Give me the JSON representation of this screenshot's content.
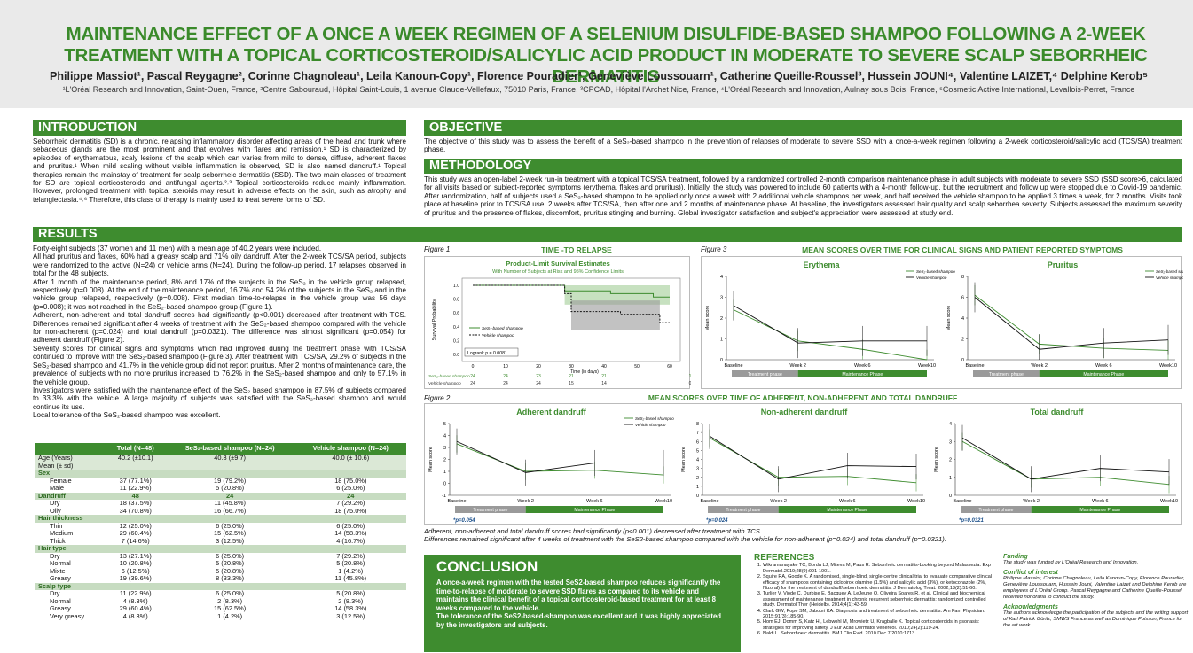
{
  "header": {
    "title": "MAINTENANCE EFFECT OF A ONCE A WEEK REGIMEN OF A SELENIUM DISULFIDE-BASED SHAMPOO FOLLOWING A 2-WEEK TREATMENT WITH A TOPICAL CORTICOSTEROID/SALICYLIC ACID PRODUCT IN MODERATE TO SEVERE SCALP SEBORRHEIC DERMATITIS",
    "authors": "Philippe Massiot¹, Pascal Reygagne², Corinne Chagnoleau¹, Leila Kanoun-Copy¹, Florence Pouradier¹, Geneviève Loussouarn¹, Catherine Queille-Roussel³, Hussein JOUNI⁴, Valentine LAIZET,⁴ Delphine Kerob⁵",
    "affiliations": "¹L'Oréal Research and Innovation, Saint-Ouen, France, ²Centre Sabouraud, Hôpital Saint-Louis, 1 avenue Claude-Vellefaux, 75010 Paris, France, ³CPCAD, Hôpital l'Archet Nice, France, ⁴L'Oréal Research and Innovation, Aulnay sous Bois, France, ⁵Cosmetic Active International, Levallois-Perret, France"
  },
  "introduction": {
    "heading": "INTRODUCTION",
    "text": "Seborrheic dermatitis (SD) is a chronic, relapsing inflammatory disorder affecting areas of the head and trunk where sebaceous glands are the most prominent and that evolves with flares and remission.¹ SD is characterized by episodes of erythematous, scaly lesions of the scalp which can varies from mild to dense, diffuse, adherent flakes and pruritus.¹ When mild scaling without visible inflammation is observed, SD is also named dandruff.¹ Topical therapies remain the mainstay of treatment for scalp seborrheic dermatitis (SSD). The two main classes of treatment for SD are topical corticosteroids and antifungal agents.²˒³ Topical corticosteroids reduce mainly inflammation. However, prolonged treatment with topical steroids may result in adverse effects on the skin, such as atrophy and telangiectasia.⁴˒⁶ Therefore, this class of therapy is mainly used to treat severe forms of SD."
  },
  "objective": {
    "heading": "OBJECTIVE",
    "text": "The objective of this study was to assess the benefit of a SeS₂-based shampoo in the prevention of relapses of moderate to severe SSD with a once-a-week regimen following a 2-week corticosteroid/salicylic acid (TCS/SA) treatment phase."
  },
  "methodology": {
    "heading": "METHODOLOGY",
    "text": "This study was an open-label 2-week run-in treatment with a topical TCS/SA treatment, followed by a randomized controlled 2-month comparison maintenance phase in adult subjects with moderate to severe SSD (SSD score>6, calculated for all visits based on subject-reported symptoms (erythema, flakes and pruritus)). Initially, the study was powered to include 60 patients with a 4-month follow-up, but the recruitment and follow up were stopped due to Covid-19 pandemic. After randomization, half of subjects used a SeS₂-based shampoo to be applied only once a week with 2 additional vehicle shampoos per week, and half received the vehicle shampoo to be applied 3 times a week, for 2 months. Visits took place at baseline prior to TCS/SA use, 2 weeks after TCS/SA, then after one and 2 months of maintenance phase. At baseline, the investigators assessed hair quality and scalp seborrhea severity. Subjects assessed the maximum severity of pruritus and the presence of flakes, discomfort, pruritus stinging and burning. Global investigator satisfaction and subject's appreciation were assessed at study end."
  },
  "results": {
    "heading": "RESULTS",
    "paragraphs": [
      "Forty-eight subjects (37 women and 11 men) with a mean age of 40.2 years were included.",
      "All had pruritus and flakes, 60% had a greasy scalp and 71% oily dandruff. After the 2-week TCS/SA period, subjects were randomized to the active (N=24) or vehicle arms (N=24). During the follow-up period, 17 relapses observed in total for the 48 subjects.",
      "After 1 month of the maintenance period, 8% and 17% of the subjects in the SeS₂ in the vehicle group relapsed, respectively (p=0.008). At the end of the maintenance period, 16.7% and 54.2% of the subjects in the SeS₂ and in the vehicle group relapsed, respectively (p=0.008). First median time-to-relapse in the vehicle group was 56 days (p=0.008); it was not reached in the SeS₂-based shampoo group (Figure 1).",
      "Adherent, non-adherent and total dandruff scores had significantly (p<0.001) decreased after treatment with TCS. Differences remained significant after 4 weeks of treatment with the SeS₂-based shampoo compared with the vehicle for non-adherent (p=0.024) and total dandruff (p=0.0321). The difference was almost significant (p=0.054) for adherent dandruff (Figure 2).",
      "Severity scores for clinical signs and symptoms which had improved during the treatment phase with TCS/SA continued to improve with the SeS₂-based shampoo (Figure 3). After treatment with TCS/SA, 29.2% of subjects in the SeS₂-based shampoo and 41.7% in the vehicle group did not report pruritus. After 2 months of maintenance care, the prevalence of subjects with no more pruritus increased to 76.2% in the SeS₂-based shampoo and only to 57.1% in the vehicle group.",
      "Investigators were satisfied with the maintenance effect of the SeS₂ based shampoo in 87.5% of subjects compared to 33.3% with the vehicle. A large majority of subjects was satisfied with the SeS₂-based shampoo and would continue its use.",
      "Local tolerance of the SeS₂-based shampoo was excellent."
    ]
  },
  "table": {
    "headers": [
      "",
      "Total (N=48)",
      "SeS₂-based shampoo (N=24)",
      "Vehicle shampoo (N=24)"
    ],
    "rows": [
      {
        "type": "first",
        "cells": [
          "Age (Years)",
          "40.2 (±10.1)",
          "40.3 (±9.7)",
          "40.0 (± 10.6)"
        ]
      },
      {
        "type": "first",
        "cells": [
          "Mean (± sd)",
          "",
          "",
          ""
        ]
      },
      {
        "type": "grp",
        "cells": [
          "Sex",
          "",
          "",
          ""
        ]
      },
      {
        "type": "sub",
        "cells": [
          "Female",
          "37 (77.1%)",
          "19 (79.2%)",
          "18 (75.0%)"
        ]
      },
      {
        "type": "sub",
        "cells": [
          "Male",
          "11 (22.9%)",
          "5 (20.8%)",
          "6 (25.0%)"
        ]
      },
      {
        "type": "grp",
        "cells": [
          "Dandruff",
          "48",
          "24",
          "24"
        ]
      },
      {
        "type": "sub",
        "cells": [
          "Dry",
          "18 (37.5%)",
          "11 (45.8%)",
          "7 (29.2%)"
        ]
      },
      {
        "type": "sub",
        "cells": [
          "Oily",
          "34 (70.8%)",
          "16 (66.7%)",
          "18 (75.0%)"
        ]
      },
      {
        "type": "grp",
        "cells": [
          "Hair thickness",
          "",
          "",
          ""
        ]
      },
      {
        "type": "sub",
        "cells": [
          "Thin",
          "12 (25.0%)",
          "6 (25.0%)",
          "6 (25.0%)"
        ]
      },
      {
        "type": "sub",
        "cells": [
          "Medium",
          "29 (60.4%)",
          "15 (62.5%)",
          "14 (58.3%)"
        ]
      },
      {
        "type": "sub",
        "cells": [
          "Thick",
          "7 (14.6%)",
          "3 (12.5%)",
          "4 (16.7%)"
        ]
      },
      {
        "type": "grp",
        "cells": [
          "Hair type",
          "",
          "",
          ""
        ]
      },
      {
        "type": "sub",
        "cells": [
          "Dry",
          "13 (27.1%)",
          "6 (25.0%)",
          "7 (29.2%)"
        ]
      },
      {
        "type": "sub",
        "cells": [
          "Normal",
          "10 (20.8%)",
          "5 (20.8%)",
          "5 (20.8%)"
        ]
      },
      {
        "type": "sub",
        "cells": [
          "Mixte",
          "6 (12.5%)",
          "5 (20.8%)",
          "1 (4.2%)"
        ]
      },
      {
        "type": "sub",
        "cells": [
          "Greasy",
          "19 (39.6%)",
          "8 (33.3%)",
          "11 (45.8%)"
        ]
      },
      {
        "type": "grp",
        "cells": [
          "Scalp type",
          "",
          "",
          ""
        ]
      },
      {
        "type": "sub",
        "cells": [
          "Dry",
          "11 (22.9%)",
          "6 (25.0%)",
          "5 (20.8%)"
        ]
      },
      {
        "type": "sub",
        "cells": [
          "Normal",
          "4 (8.3%)",
          "2 (8.3%)",
          "2 (8.3%)"
        ]
      },
      {
        "type": "sub",
        "cells": [
          "Greasy",
          "29 (60.4%)",
          "15 (62.5%)",
          "14 (58.3%)"
        ]
      },
      {
        "type": "sub",
        "cells": [
          "Very greasy",
          "4 (8.3%)",
          "1 (4.2%)",
          "3 (12.5%)"
        ]
      }
    ]
  },
  "figure1": {
    "label": "Figure 1",
    "title": "TIME -TO RELAPSE",
    "plot_title": "Product-Limit Survival Estimates",
    "plot_subtitle": "With Number of Subjects at Risk and 95% Confidence Limits",
    "ylabel": "Survival Probability",
    "xlabel": "Time (in days)",
    "logrank": "Logrank  p = 0.0081",
    "legend": [
      "SeS₂-based shampoo",
      "Vehicle shampoo"
    ],
    "risk_labels": [
      "SeS₂-based shampoo",
      "Vehicle shampoo"
    ],
    "risk_active": [
      "24",
      "24",
      "23",
      "21",
      "21",
      "1"
    ],
    "risk_vehicle": [
      "24",
      "24",
      "24",
      "15",
      "14",
      "0"
    ]
  },
  "figure2": {
    "label": "Figure 2",
    "title": "MEAN SCORES OVER TIME OF ADHERENT, NON-ADHERENT AND TOTAL DANDRUFF",
    "caption1": "Adherent, non-adherent and total dandruff scores had significantly (p<0.001) decreased after treatment with TCS.",
    "caption2": "Differences remained significant after 4 weeks of treatment with the SeS2-based shampoo compared with the vehicle for non-adherent (p=0.024) and total dandruff (p=0.0321)."
  },
  "figure3": {
    "label": "Figure 3",
    "title": "MEAN SCORES OVER TIME FOR CLINICAL SIGNS AND PATIENT REPORTED SYMPTOMS"
  },
  "phases": {
    "treatment": "Treatment phase",
    "maintenance": "Maintenance Phase"
  },
  "chart_data": [
    {
      "id": "fig1",
      "type": "line",
      "title": "Product-Limit Survival Estimates",
      "xlabel": "Time (in days)",
      "ylabel": "Survival Probability",
      "xlim": [
        0,
        60
      ],
      "ylim": [
        0,
        1
      ],
      "xticks": [
        "0",
        "10",
        "20",
        "30",
        "40",
        "50",
        "60"
      ],
      "yticks": [
        "0.0",
        "0.2",
        "0.4",
        "0.6",
        "0.8",
        "1.0"
      ],
      "series": [
        {
          "name": "SeS₂-based shampoo",
          "x": [
            0,
            28,
            28,
            42,
            42,
            55,
            55,
            60
          ],
          "y": [
            1,
            1,
            0.92,
            0.92,
            0.88,
            0.88,
            0.83,
            0.83
          ]
        },
        {
          "name": "Vehicle shampoo",
          "x": [
            0,
            28,
            28,
            30,
            30,
            45,
            45,
            57,
            57,
            60
          ],
          "y": [
            1,
            1,
            0.88,
            0.88,
            0.62,
            0.62,
            0.58,
            0.58,
            0.46,
            0.46
          ]
        }
      ]
    },
    {
      "id": "adh",
      "type": "line",
      "title": "Adherent dandruff",
      "ylabel": "Mean score",
      "categories": [
        "Baseline",
        "Week 2",
        "Week 6",
        "Week10"
      ],
      "ylim": [
        -1,
        5
      ],
      "yticks": [
        "-1",
        "0",
        "1",
        "2",
        "3",
        "4",
        "5"
      ],
      "annot": "*p=0.054",
      "series": [
        {
          "name": "SeS₂-based shampoo",
          "values": [
            3.3,
            1.0,
            1.1,
            0.7
          ]
        },
        {
          "name": "Vehicle shampoo",
          "values": [
            3.5,
            0.9,
            1.7,
            1.7
          ]
        }
      ]
    },
    {
      "id": "nonadh",
      "type": "line",
      "title": "Non-adherent dandruff",
      "ylabel": "Mean score",
      "categories": [
        "Baseline",
        "Week 2",
        "Week 6",
        "Week10"
      ],
      "ylim": [
        0,
        8
      ],
      "yticks": [
        "0",
        "1",
        "2",
        "3",
        "4",
        "5",
        "6",
        "7",
        "8"
      ],
      "annot": "*p=0.024",
      "series": [
        {
          "name": "SeS₂-based shampoo",
          "values": [
            6.4,
            2.0,
            2.1,
            1.4
          ]
        },
        {
          "name": "Vehicle shampoo",
          "values": [
            6.6,
            1.8,
            3.3,
            3.2
          ]
        }
      ]
    },
    {
      "id": "total",
      "type": "line",
      "title": "Total dandruff",
      "ylabel": "Mean score",
      "categories": [
        "Baseline",
        "Week 2",
        "Week 6",
        "Week10"
      ],
      "ylim": [
        0,
        4
      ],
      "yticks": [
        "0",
        "1",
        "2",
        "3",
        "4"
      ],
      "annot": "*p=0.0321",
      "series": [
        {
          "name": "SeS₂-based shampoo",
          "values": [
            3.0,
            0.9,
            1.0,
            0.6
          ]
        },
        {
          "name": "Vehicle shampoo",
          "values": [
            3.2,
            0.9,
            1.5,
            1.3
          ]
        }
      ]
    },
    {
      "id": "ery",
      "type": "line",
      "title": "Erythema",
      "ylabel": "Mean score",
      "categories": [
        "Baseline",
        "Week 2",
        "Week 6",
        "Week10"
      ],
      "ylim": [
        0,
        4
      ],
      "yticks": [
        "0",
        "1",
        "2",
        "3",
        "4"
      ],
      "series": [
        {
          "name": "SeS₂-based shampoo",
          "values": [
            2.4,
            0.9,
            0.5,
            0.0
          ]
        },
        {
          "name": "Vehicle shampoo",
          "values": [
            2.6,
            0.8,
            0.9,
            0.9
          ]
        }
      ]
    },
    {
      "id": "pru",
      "type": "line",
      "title": "Pruritus",
      "ylabel": "Mean score",
      "categories": [
        "Baseline",
        "Week 2",
        "Week 6",
        "Week10"
      ],
      "ylim": [
        0,
        8
      ],
      "yticks": [
        "0",
        "2",
        "4",
        "6",
        "8"
      ],
      "series": [
        {
          "name": "SeS₂-based shampoo",
          "values": [
            6.2,
            1.5,
            1.1,
            0.9
          ]
        },
        {
          "name": "Vehicle shampoo",
          "values": [
            6.0,
            1.0,
            1.6,
            1.9
          ]
        }
      ]
    }
  ],
  "conclusion": {
    "heading": "CONCLUSION",
    "text1": "A once-a-week regimen with the tested SeS2-based shampoo reduces significantly the time-to-relapse of moderate to severe SSD flares as compared to its vehicle and maintains the clinical benefit of a topical corticosteroid-based treatment for at least 8 weeks compared to the vehicle.",
    "text2": "The tolerance of the SeS2-based-shampoo was excellent and it was highly appreciated by the investigators and subjects."
  },
  "references": {
    "heading": "REFERENCES",
    "items": [
      "Wikramanayake TC, Borda LJ, Miteva M, Paus R. Seborrheic dermatitis-Looking beyond Malassezia. Exp Dermatol.2019;28(9):991-1001.",
      "Squire RA, Goode K. A randomised, single-blind, single-centre clinical trial to evaluate comparative clinical efficacy of shampoos containing ciclopirox olamine (1.5%) and salicylic acid (3%), or ketoconazole (2%, Nizoral) for the treatment of dandruff/seborrhoeic dermatitis. J Dermatolog Treat. 2002;13(2):51-60.",
      "Turlier V, Viode C, Durbise E, Bacquey A, LeJeune O, Oliveira Soares R, et al. Clinical and biochemical assessment of maintenance treatment in chronic recurrent seborrheic dermatitis: randomized controlled study. Dermatol Ther (Heidelb). 2014;4(1):43-59.",
      "Clark GW, Pope SM, Jaboori KA. Diagnosis and treatment of seborrheic dermatitis. Am Fam Physician. 2015;91(3):185-90.",
      "Hom EJ, Domm S, Katz HI, Lebwohl M, Mrowietz U, Kragballe K. Topical corticosteroids in psoriasis: strategies for improving safety. J Eur Acad Dermatol Venereol. 2010;24(2):119-24.",
      "Naldi L. Seborrhoeic dermatitis. BMJ Clin Evid. 2010 Dec 7;2010:1713."
    ]
  },
  "funding": {
    "heading": "Funding",
    "text": "The study was funded by L'Oréal Research and Innovation."
  },
  "conflict": {
    "heading": "Conflict of interest",
    "text": "Philippe Massiot, Corinne Chagnoleau, Leila Kanoun-Copy, Florence Pouradier, Geneviève Loussouarn, Hussein Jouni, Valentine Laizet and Delphine Kerob are employees of L'Oréal Group. Pascal Reygagne and Catherine Queille-Roussel received honoraria to conduct the study."
  },
  "acknowledgements": {
    "heading": "Acknowledgments",
    "text": "The authors acknowledge the participation of the subjects and the writing support of Karl Patrick Göritz, SMWS France as well as Dominique Poisson, France for the art work."
  },
  "colors": {
    "green": "#3e8c2f",
    "light_green": "#c7dcc1",
    "vehicle": "#111111"
  }
}
